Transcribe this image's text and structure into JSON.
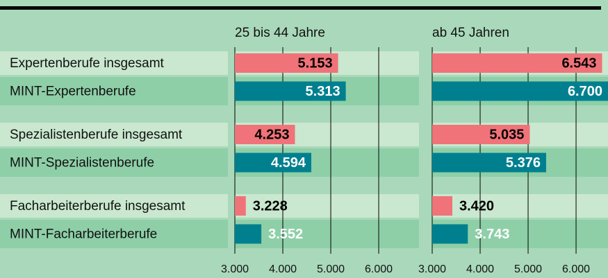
{
  "chart_data": {
    "type": "bar",
    "orientation": "horizontal",
    "categories": [
      "Expertenberufe insgesamt",
      "MINT-Expertenberufe",
      "Spezialistenberufe insgesamt",
      "MINT-Spezialistenberufe",
      "Facharbeiterberufe insgesamt",
      "MINT-Facharbeiterberufe"
    ],
    "colors": [
      "#f07379",
      "#00808f",
      "#f07379",
      "#00808f",
      "#f07379",
      "#00808f"
    ],
    "label_colors": [
      "#000000",
      "#ffffff",
      "#000000",
      "#ffffff",
      "#000000",
      "#ffffff"
    ],
    "grid": true,
    "panels": [
      {
        "title": "25 bis 44 Jahre",
        "values": [
          5153,
          5313,
          4253,
          4594,
          3228,
          3552
        ],
        "value_labels": [
          "5.153",
          "5.313",
          "4.253",
          "4.594",
          "3.228",
          "3.552"
        ],
        "xlim": [
          3000,
          6840
        ],
        "xticks": [
          {
            "value": 3000,
            "label": "3.000"
          },
          {
            "value": 4000,
            "label": "4.000"
          },
          {
            "value": 5000,
            "label": "5.000"
          },
          {
            "value": 6000,
            "label": "6.000"
          }
        ]
      },
      {
        "title": "ab 45 Jahren",
        "values": [
          6543,
          6700,
          5035,
          5376,
          3420,
          3743
        ],
        "value_labels": [
          "6.543",
          "6.700",
          "5.035",
          "5.376",
          "3.420",
          "3.743"
        ],
        "xlim": [
          3000,
          6840
        ],
        "xticks": [
          {
            "value": 3000,
            "label": "3.000"
          },
          {
            "value": 4000,
            "label": "4.000"
          },
          {
            "value": 5000,
            "label": "5.000"
          },
          {
            "value": 6000,
            "label": "6.000"
          }
        ]
      }
    ]
  }
}
